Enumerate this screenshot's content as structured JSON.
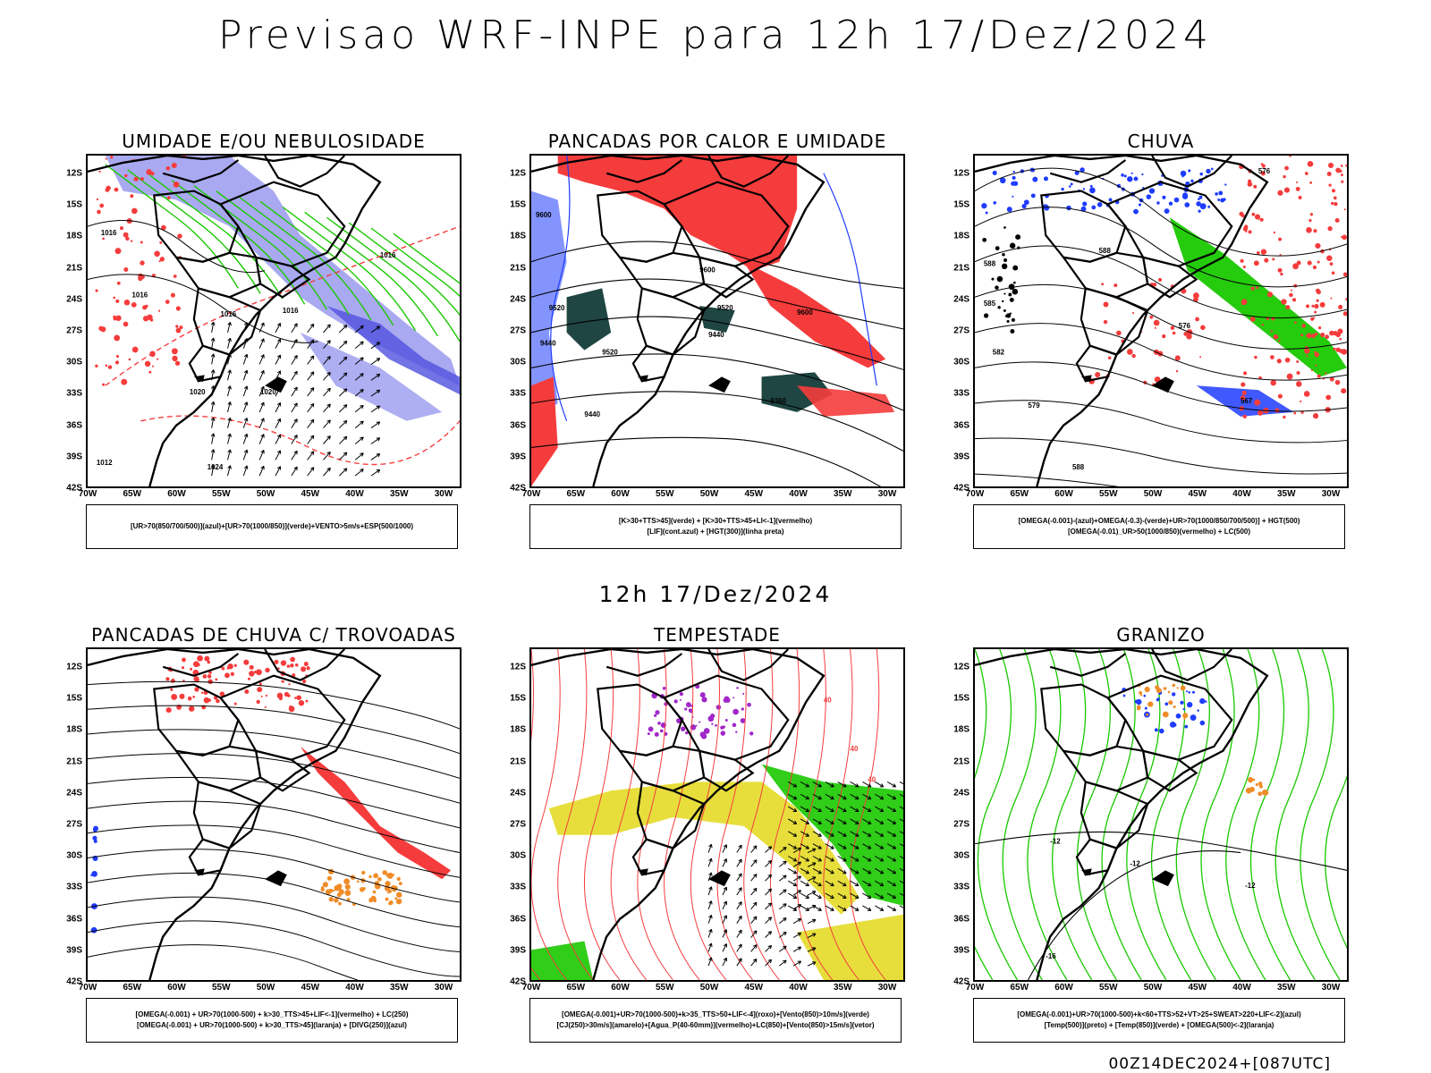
{
  "page": {
    "title": "Previsao WRF-INPE  para 12h 17/Dez/2024",
    "subtitle": "12h 17/Dez/2024",
    "footer": "00Z14DEC2024+[087UTC]"
  },
  "axes": {
    "lat_labels": [
      "12S",
      "15S",
      "18S",
      "21S",
      "24S",
      "27S",
      "30S",
      "33S",
      "36S",
      "39S",
      "42S"
    ],
    "lon_labels": [
      "70W",
      "65W",
      "60W",
      "55W",
      "50W",
      "45W",
      "40W",
      "35W",
      "30W"
    ]
  },
  "colors": {
    "blue_fill": "#a0a0f0",
    "blue": "#1f3cff",
    "green": "#19c800",
    "red": "#f53c3c",
    "dark_teal": "#1f4642",
    "yellow": "#e6dc32",
    "orange": "#f08c28",
    "purple": "#a028c8",
    "black": "#000000"
  },
  "panels": [
    {
      "id": "umidade",
      "title": "UMIDADE E/OU NEBULOSIDADE",
      "contour_labels": [
        "1016",
        "1016",
        "1016",
        "1020",
        "1020",
        "1024",
        "1016",
        "1016",
        "1012"
      ],
      "legend": [
        "[UR>70(850/700/500)](azul)+[UR>70(1000/850)](verde)+VENTO>5m/s+ESP(500/1000)"
      ]
    },
    {
      "id": "pancadas-calor",
      "title": "PANCADAS POR CALOR E UMIDADE",
      "contour_labels": [
        "9600",
        "9600",
        "9520",
        "9520",
        "9520",
        "9440",
        "9440",
        "9600",
        "9360",
        "9440"
      ],
      "legend": [
        "[K>30+TTS>45](verde)  +  [K>30+TTS>45+LI<-1](vermelho)",
        "[LIF](cont.azul)  +  [HGT(300)](linha preta)"
      ]
    },
    {
      "id": "chuva",
      "title": "CHUVA",
      "contour_labels": [
        "588",
        "588",
        "585",
        "576",
        "582",
        "579",
        "576",
        "567",
        "588"
      ],
      "legend": [
        "[OMEGA(-0.001)-(azul)+OMEGA(-0.3)-(verde)+UR>70(1000/850/700/500)]  +  HGT(500)",
        "[OMEGA(-0.01)_UR>50(1000/850)(vermelho)  +  LC(500)"
      ]
    },
    {
      "id": "pancadas-trovoadas",
      "title": "PANCADAS DE CHUVA C/ TROVOADAS",
      "contour_labels": [],
      "legend": [
        "[OMEGA(-0.001)  +  UR>70(1000-500)  +  k>30_TTS>45+LIF<-1](vermelho)  +  LC(250)",
        "[OMEGA(-0.001)  +  UR>70(1000-500)  +  k>30_TTS>45](laranja)  +  [DIVG(250)](azul)"
      ]
    },
    {
      "id": "tempestade",
      "title": "TEMPESTADE",
      "contour_labels": [
        "40",
        "40",
        "40"
      ],
      "legend": [
        "[OMEGA(-0.001)+UR>70(1000-500)+k>35_TTS>50+LIF<-4](roxo)+[Vento(850)>10m/s](verde)",
        "[CJ(250)>30m/s](amarelo)+[Agua_P(40-60mm)](vermelho)+LC(850)+[Vento(850)>15m/s](vetor)"
      ]
    },
    {
      "id": "granizo",
      "title": "GRANIZO",
      "contour_labels": [
        "-12",
        "-12",
        "-12",
        "-16"
      ],
      "legend": [
        "[OMEGA(-0.001)+UR>70(1000-500)+k<60+TTS>52+VT>25+SWEAT>220+LIF<-2](azul)",
        "[Temp(500)](preto)  +  [Temp(850)](verde)  +  [OMEGA(500)<-2](laranja)"
      ]
    }
  ]
}
